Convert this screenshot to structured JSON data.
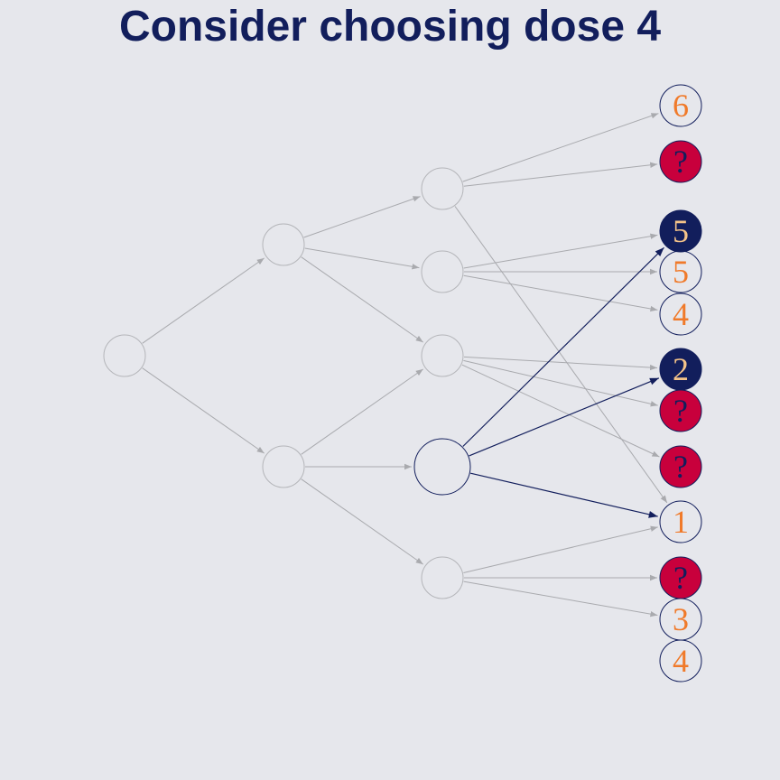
{
  "title": "Consider choosing dose 4",
  "colors": {
    "background": "#e6e7ec",
    "title": "#121e5c",
    "navy": "#121e5c",
    "grey_edge": "#a9aaae",
    "grey_node_stroke": "#b4b5b9",
    "orange_text": "#f07a2a",
    "light_orange_text": "#f5c489",
    "red_fill": "#c8003c",
    "navy_text": "#121e5c"
  },
  "leaves": [
    {
      "id": "leaf-1",
      "label": "6",
      "style": "outline"
    },
    {
      "id": "leaf-2",
      "label": "?",
      "style": "unknown"
    },
    {
      "id": "leaf-3",
      "label": "5",
      "style": "selected"
    },
    {
      "id": "leaf-4",
      "label": "5",
      "style": "outline"
    },
    {
      "id": "leaf-5",
      "label": "4",
      "style": "outline"
    },
    {
      "id": "leaf-6",
      "label": "2",
      "style": "selected"
    },
    {
      "id": "leaf-7",
      "label": "?",
      "style": "unknown"
    },
    {
      "id": "leaf-8",
      "label": "?",
      "style": "unknown"
    },
    {
      "id": "leaf-9",
      "label": "1",
      "style": "outline"
    },
    {
      "id": "leaf-10",
      "label": "?",
      "style": "unknown"
    },
    {
      "id": "leaf-11",
      "label": "3",
      "style": "outline"
    },
    {
      "id": "leaf-12",
      "label": "4",
      "style": "outline"
    }
  ]
}
